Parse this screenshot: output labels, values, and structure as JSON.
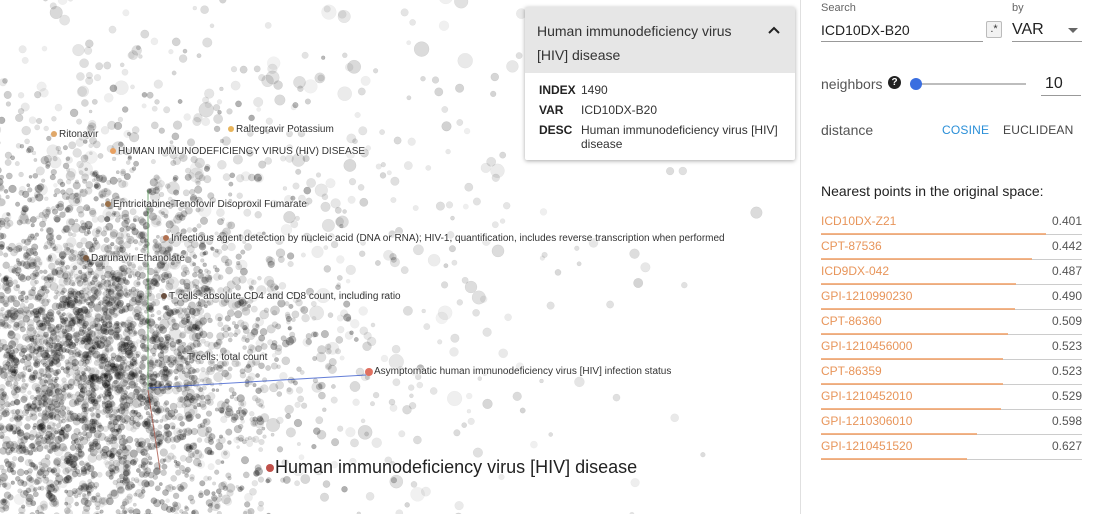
{
  "plot": {
    "labels": [
      {
        "text": "Ritonavir",
        "dot": "#e0a86a"
      },
      {
        "text": "Raltegravir Potassium",
        "dot": "#e8b45a"
      },
      {
        "text": "HUMAN IMMUNODEFICIENCY VIRUS (HIV) DISEASE",
        "dot": "#e8a060"
      },
      {
        "text": "Emtricitabine-Tenofovir Disoproxil Fumarate",
        "dot": "#9a7048"
      },
      {
        "text": "Infectious agent detection by nucleic acid (DNA or RNA); HIV-1, quantification, includes reverse transcription when performed",
        "dot": "#b07050"
      },
      {
        "text": "Darunavir Ethanolate",
        "dot": "#7a5a40"
      },
      {
        "text": "T cells; absolute CD4 and CD8 count, including ratio",
        "dot": "#6a5040"
      },
      {
        "text": "T cells; total count",
        "dot": "#666"
      },
      {
        "text": "Asymptomatic human immunodeficiency virus [HIV] infection status",
        "dot": "#e07060"
      },
      {
        "text": "Human immunodeficiency virus [HIV] disease",
        "dot": "#c0504a"
      }
    ]
  },
  "card": {
    "title": "Human immunodeficiency virus [HIV] disease",
    "rows": [
      {
        "key": "INDEX",
        "value": "1490"
      },
      {
        "key": "VAR",
        "value": "ICD10DX-B20"
      },
      {
        "key": "DESC",
        "value": "Human immunodeficiency virus [HIV] disease"
      }
    ]
  },
  "panel": {
    "search_label": "Search",
    "search_value": "ICD10DX-B20",
    "regex_glyph": ".*",
    "by_label": "by",
    "by_value": "VAR",
    "neighbors_label": "neighbors",
    "help_glyph": "?",
    "neighbors_value": "10",
    "neighbors_fraction": 0.0,
    "distance_label": "distance",
    "cosine_label": "COSINE",
    "euclidean_label": "EUCLIDEAN",
    "active_distance": "cosine",
    "accent_color": "#2a8fd8",
    "nn_title": "Nearest points in the original space:",
    "neighbors": [
      {
        "name": "ICD10DX-Z21",
        "dist": "0.401"
      },
      {
        "name": "CPT-87536",
        "dist": "0.442"
      },
      {
        "name": "ICD9DX-042",
        "dist": "0.487"
      },
      {
        "name": "GPI-1210990230",
        "dist": "0.490"
      },
      {
        "name": "CPT-86360",
        "dist": "0.509"
      },
      {
        "name": "GPI-1210456000",
        "dist": "0.523"
      },
      {
        "name": "CPT-86359",
        "dist": "0.523"
      },
      {
        "name": "GPI-1210452010",
        "dist": "0.529"
      },
      {
        "name": "GPI-1210306010",
        "dist": "0.598"
      },
      {
        "name": "GPI-1210451520",
        "dist": "0.627"
      }
    ]
  }
}
